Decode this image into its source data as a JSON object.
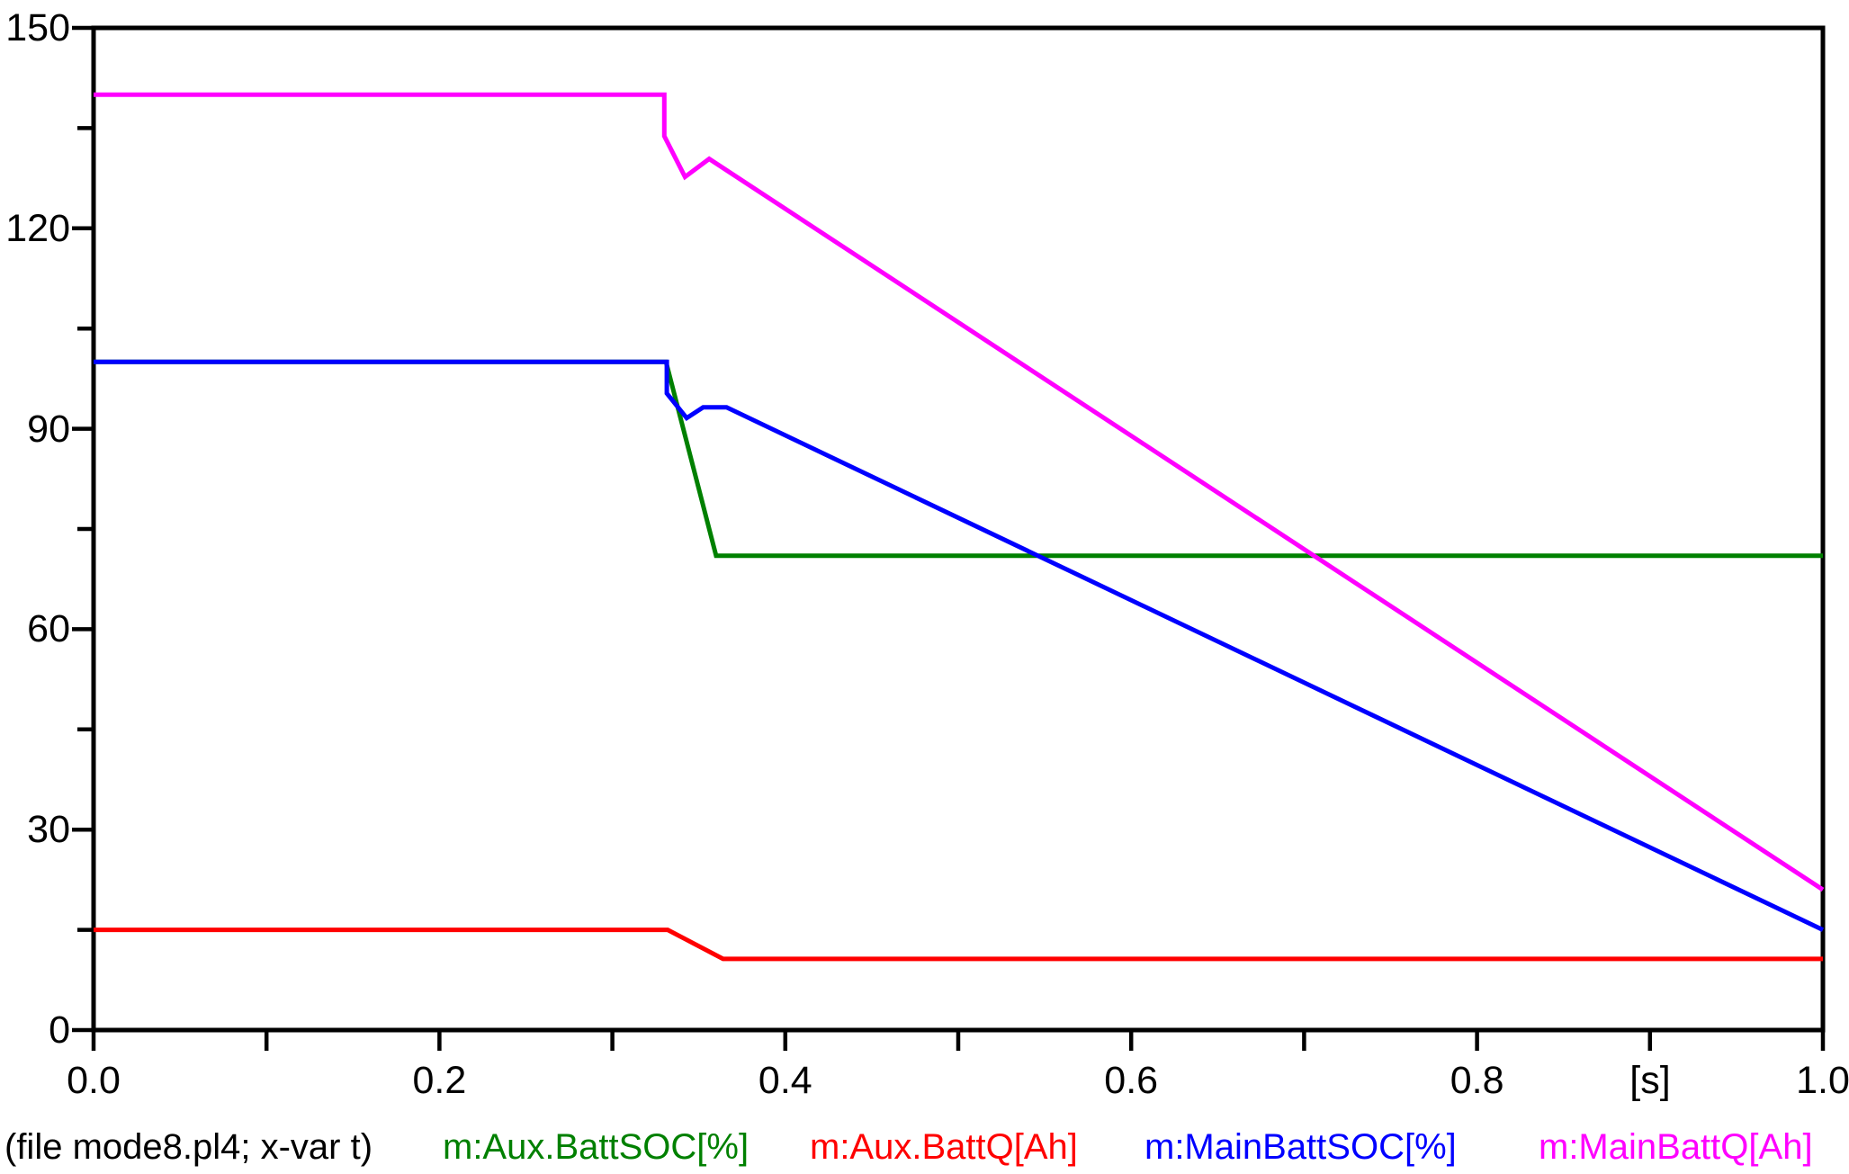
{
  "chart_data": {
    "type": "line",
    "title": "",
    "xlabel": "t",
    "x_unit_label": "[s]",
    "x_unit_label_position": 0.9,
    "ylabel": "",
    "xlim": [
      0.0,
      1.0
    ],
    "ylim": [
      0,
      150
    ],
    "grid": false,
    "legend_position": "bottom",
    "frame_color": "#000000",
    "x_major_ticks": [
      {
        "value": 0.0,
        "label": "0.0"
      },
      {
        "value": 0.2,
        "label": "0.2"
      },
      {
        "value": 0.4,
        "label": "0.4"
      },
      {
        "value": 0.6,
        "label": "0.6"
      },
      {
        "value": 0.8,
        "label": "0.8"
      },
      {
        "value": 1.0,
        "label": "1.0"
      }
    ],
    "x_minor_ticks": [
      0.1,
      0.3,
      0.5,
      0.7,
      0.9
    ],
    "y_major_ticks": [
      {
        "value": 0,
        "label": "0"
      },
      {
        "value": 30,
        "label": "30"
      },
      {
        "value": 60,
        "label": "60"
      },
      {
        "value": 90,
        "label": "90"
      },
      {
        "value": 120,
        "label": "120"
      },
      {
        "value": 150,
        "label": "150"
      }
    ],
    "y_minor_ticks": [
      15,
      45,
      75,
      105,
      135
    ],
    "series": [
      {
        "name": "m:Aux.BattSOC[%]",
        "color": "#008000",
        "points": [
          [
            0.0,
            100
          ],
          [
            0.331,
            100
          ],
          [
            0.36,
            71
          ],
          [
            1.0,
            71
          ]
        ]
      },
      {
        "name": "m:Aux.BattQ[Ah]",
        "color": "#ff0000",
        "points": [
          [
            0.0,
            15
          ],
          [
            0.332,
            15
          ],
          [
            0.364,
            10.65
          ],
          [
            1.0,
            10.65
          ]
        ]
      },
      {
        "name": "m:MainBattSOC[%]",
        "color": "#0000ff",
        "points": [
          [
            0.0,
            100
          ],
          [
            0.3315,
            100
          ],
          [
            0.3315,
            95.3
          ],
          [
            0.343,
            91.6
          ],
          [
            0.3525,
            93.2
          ],
          [
            0.366,
            93.2
          ],
          [
            1.0,
            15
          ]
        ]
      },
      {
        "name": "m:MainBattQ[Ah]",
        "color": "#ff00ff",
        "points": [
          [
            0.0,
            140
          ],
          [
            0.33,
            140
          ],
          [
            0.33,
            133.8
          ],
          [
            0.342,
            127.7
          ],
          [
            0.356,
            130.4
          ],
          [
            1.0,
            21
          ]
        ]
      }
    ]
  },
  "footer": {
    "file_annotation": "(file mode8.pl4; x-var t)"
  }
}
